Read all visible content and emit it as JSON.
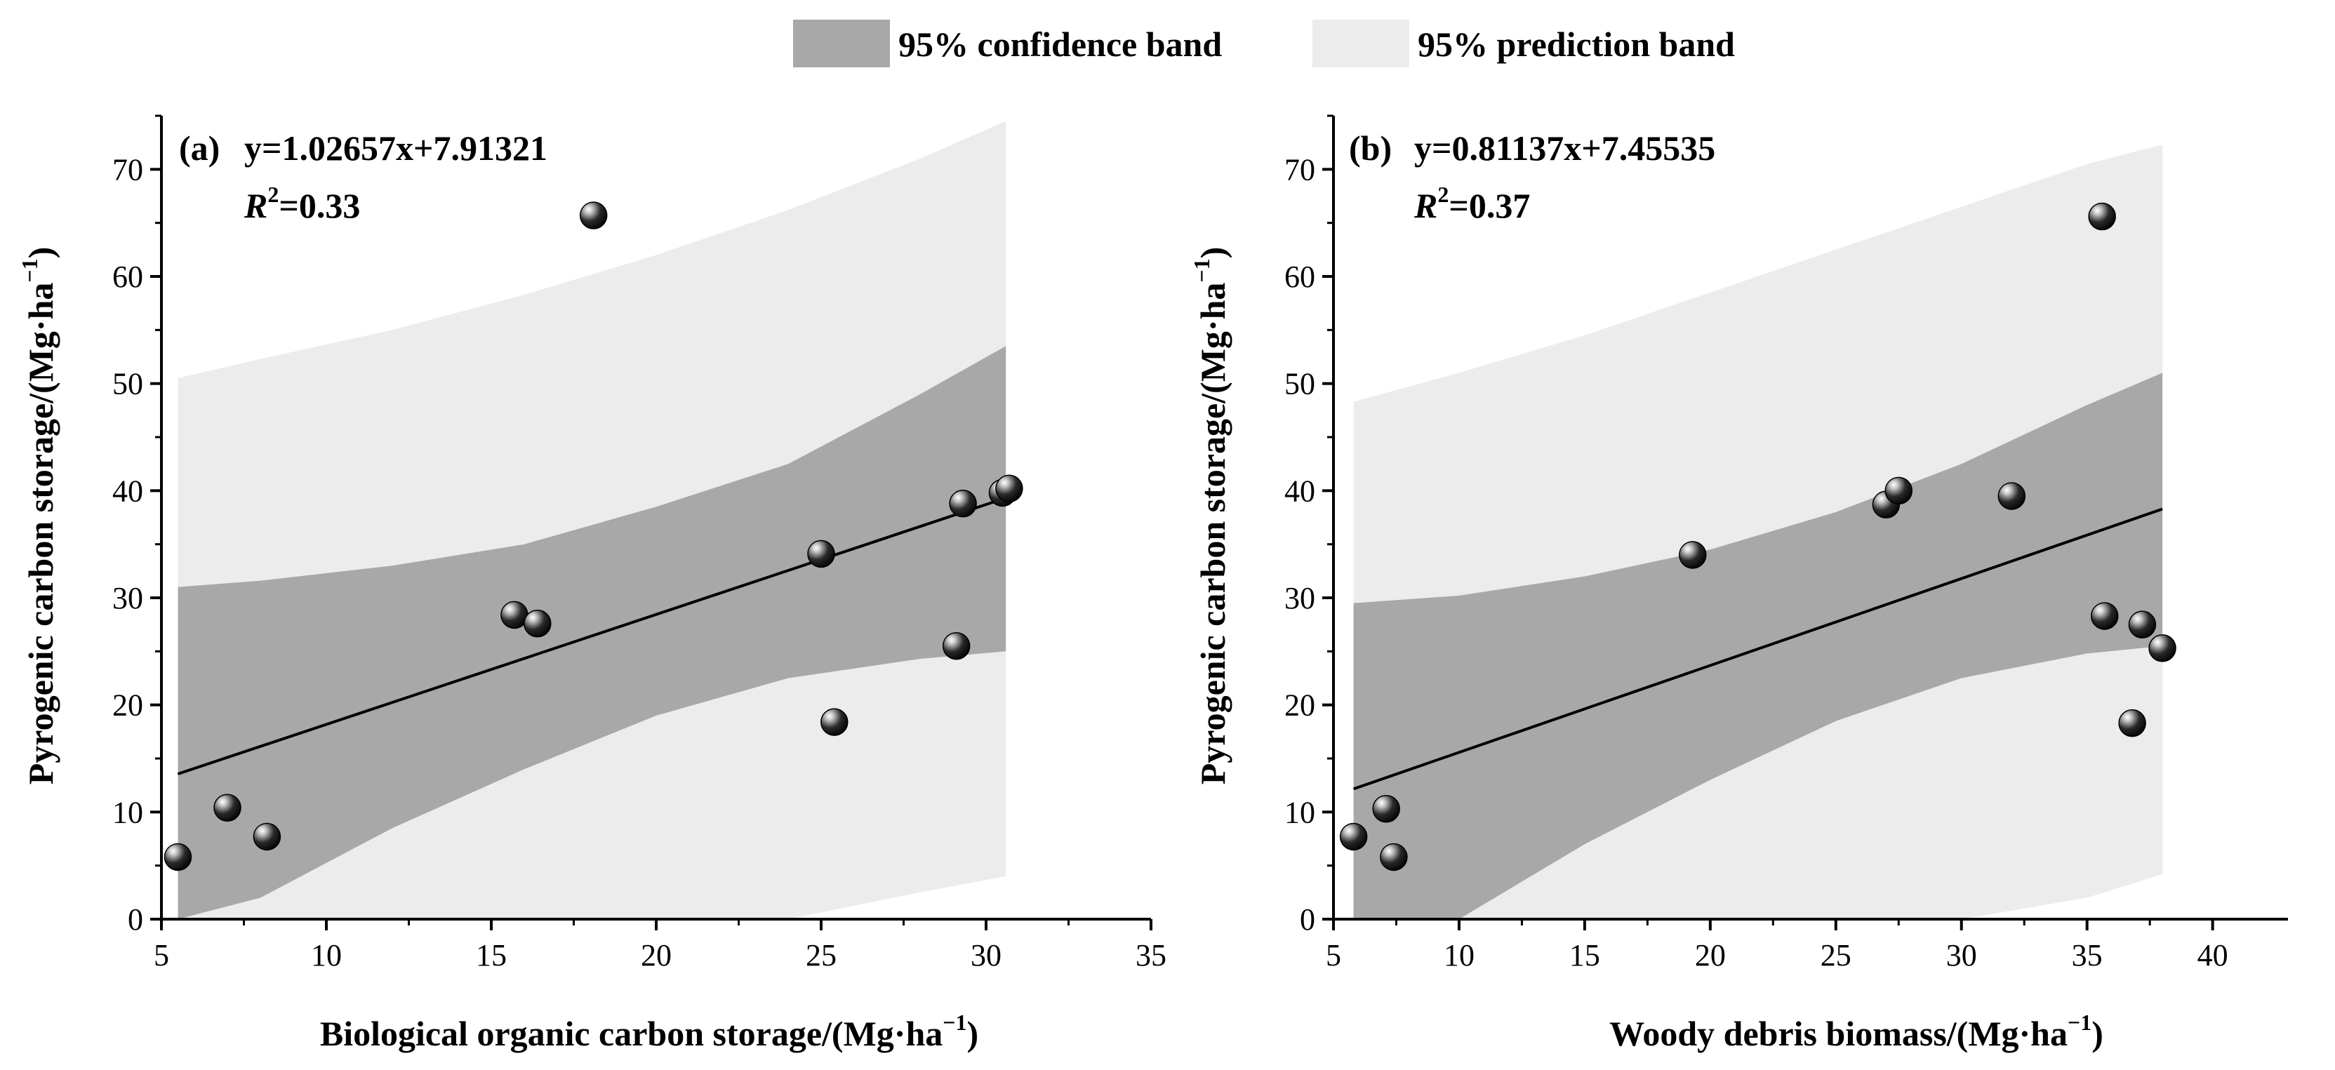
{
  "legend": {
    "confidence": {
      "label": "95% confidence band",
      "color": "#a8a8a8"
    },
    "prediction": {
      "label": "95% prediction band",
      "color": "#ececec"
    }
  },
  "chart_data": [
    {
      "type": "scatter",
      "panel": "(a)",
      "equation": "y=1.02657x+7.91321",
      "r2_symbol": "R",
      "r2_sup": "2",
      "r2_value": "=0.33",
      "slope": 1.02657,
      "intercept": 7.91321,
      "xlabel": "Biological organic carbon storage/(Mg·ha",
      "xlabel_sup": "−1",
      "xlabel_tail": ")",
      "ylabel": "Pyrogenic carbon storage/(Mg·ha",
      "ylabel_sup": "−1",
      "ylabel_tail": ")",
      "xlim": [
        5,
        35
      ],
      "ylim": [
        0,
        75
      ],
      "xticks": [
        "5",
        "10",
        "15",
        "20",
        "25",
        "30",
        "35"
      ],
      "yticks": [
        "0",
        "10",
        "20",
        "30",
        "40",
        "50",
        "60",
        "70"
      ],
      "fit_range": [
        5.5,
        30.6
      ],
      "band_x": [
        5.5,
        8,
        12,
        16,
        20,
        24,
        28,
        30.6
      ],
      "conf_lower": [
        0,
        2,
        8.5,
        14,
        19,
        22.5,
        24.3,
        25
      ],
      "conf_upper": [
        31,
        31.6,
        33,
        35,
        38.5,
        42.5,
        49,
        53.5
      ],
      "pred_lower": [
        0,
        0,
        0,
        0,
        0,
        0,
        2.5,
        4
      ],
      "pred_upper": [
        50.5,
        52.3,
        55,
        58.3,
        62,
        66.2,
        71,
        74.5
      ],
      "points": [
        {
          "x": 5.5,
          "y": 5.8
        },
        {
          "x": 7.0,
          "y": 10.4
        },
        {
          "x": 8.2,
          "y": 7.7
        },
        {
          "x": 15.7,
          "y": 28.4
        },
        {
          "x": 16.4,
          "y": 27.6
        },
        {
          "x": 18.1,
          "y": 65.7
        },
        {
          "x": 25.0,
          "y": 34.1
        },
        {
          "x": 25.4,
          "y": 18.4
        },
        {
          "x": 29.1,
          "y": 25.5
        },
        {
          "x": 29.3,
          "y": 38.8
        },
        {
          "x": 30.5,
          "y": 39.8
        },
        {
          "x": 30.7,
          "y": 40.2
        }
      ]
    },
    {
      "type": "scatter",
      "panel": "(b)",
      "equation": "y=0.81137x+7.45535",
      "r2_symbol": "R",
      "r2_sup": "2",
      "r2_value": "=0.37",
      "slope": 0.81137,
      "intercept": 7.45535,
      "xlabel": "Woody debris biomass/(Mg·ha",
      "xlabel_sup": "−1",
      "xlabel_tail": ")",
      "ylabel": "Pyrogenic carbon storage/(Mg·ha",
      "ylabel_sup": "−1",
      "ylabel_tail": ")",
      "xlim": [
        5,
        43
      ],
      "ylim": [
        0,
        75
      ],
      "xticks": [
        "5",
        "10",
        "15",
        "20",
        "25",
        "30",
        "35",
        "40"
      ],
      "yticks": [
        "0",
        "10",
        "20",
        "30",
        "40",
        "50",
        "60",
        "70"
      ],
      "fit_range": [
        5.8,
        38
      ],
      "band_x": [
        5.8,
        10,
        15,
        20,
        25,
        30,
        35,
        38
      ],
      "conf_lower": [
        0,
        0,
        7,
        13,
        18.5,
        22.5,
        24.8,
        25.5
      ],
      "conf_upper": [
        29.5,
        30.2,
        32,
        34.5,
        38,
        42.5,
        48,
        51
      ],
      "pred_lower": [
        0,
        0,
        0,
        0,
        0,
        0,
        2,
        4.2
      ],
      "pred_upper": [
        48.3,
        51,
        54.5,
        58.5,
        62.5,
        66.5,
        70.5,
        72.3
      ],
      "points": [
        {
          "x": 5.8,
          "y": 7.7
        },
        {
          "x": 7.1,
          "y": 10.3
        },
        {
          "x": 7.4,
          "y": 5.8
        },
        {
          "x": 19.3,
          "y": 34.0
        },
        {
          "x": 27.0,
          "y": 38.7
        },
        {
          "x": 27.5,
          "y": 40.0
        },
        {
          "x": 32.0,
          "y": 39.5
        },
        {
          "x": 35.6,
          "y": 65.6
        },
        {
          "x": 35.7,
          "y": 28.3
        },
        {
          "x": 36.8,
          "y": 18.3
        },
        {
          "x": 37.2,
          "y": 27.5
        },
        {
          "x": 38.0,
          "y": 25.3
        }
      ]
    }
  ]
}
